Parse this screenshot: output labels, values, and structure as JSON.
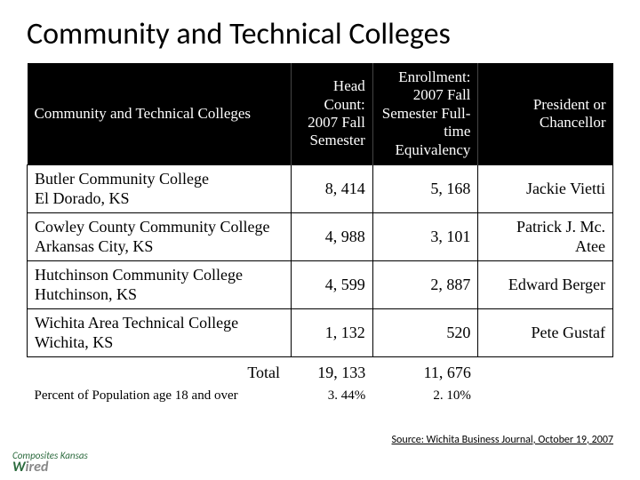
{
  "title": "Community and Technical Colleges",
  "headers": {
    "col1": "Community and Technical Colleges",
    "col2": "Head Count: 2007 Fall Semester",
    "col3": "Enrollment: 2007 Fall Semester Full-time Equivalency",
    "col4": "President or Chancellor"
  },
  "rows": [
    {
      "name": "Butler Community College\nEl Dorado, KS",
      "head": "8, 414",
      "enroll": "5, 168",
      "pres": "Jackie Vietti"
    },
    {
      "name": "Cowley County Community College\nArkansas City, KS",
      "head": "4, 988",
      "enroll": "3, 101",
      "pres": "Patrick J. Mc. Atee"
    },
    {
      "name": "Hutchinson Community College\nHutchinson, KS",
      "head": "4, 599",
      "enroll": "2, 887",
      "pres": "Edward Berger"
    },
    {
      "name": "Wichita Area Technical College\nWichita, KS",
      "head": "1, 132",
      "enroll": "520",
      "pres": "Pete Gustaf"
    }
  ],
  "total": {
    "label": "Total",
    "head": "19, 133",
    "enroll": "11, 676"
  },
  "percent": {
    "label": "Percent of Population age 18 and over",
    "head": "3. 44%",
    "enroll": "2. 10%"
  },
  "source": "Source: Wichita Business Journal, October 19, 2007",
  "logo": {
    "top": "Composites Kansas",
    "brand": "Wired"
  }
}
